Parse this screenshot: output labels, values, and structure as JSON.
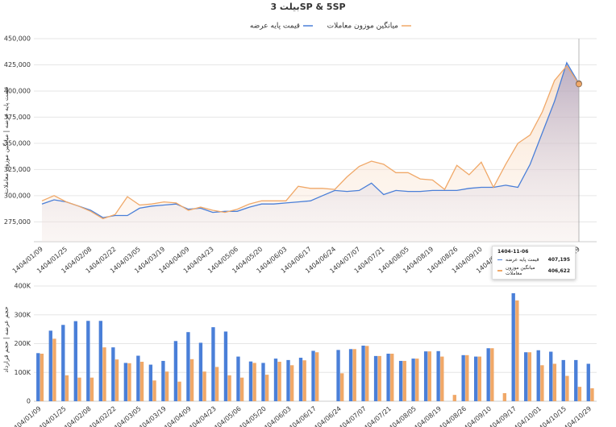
{
  "chart_data": [
    {
      "type": "line",
      "title": "بیلت 3SP & 5SP",
      "y_label": "قیمت پایه عرضه | میانگین موزون معاملات",
      "categories": [
        "1404/01/09",
        null,
        "1404/01/25",
        null,
        "1404/02/08",
        null,
        "1404/02/22",
        null,
        "1404/03/05",
        null,
        "1404/03/19",
        null,
        "1404/04/09",
        null,
        "1404/04/23",
        null,
        "1404/05/06",
        null,
        "1404/05/20",
        null,
        "1404/06/03",
        null,
        "1404/06/17",
        null,
        "1404/06/24",
        null,
        "1404/07/07",
        null,
        "1404/07/21",
        null,
        "1404/08/05",
        null,
        "1404/08/19",
        null,
        "1404/08/26",
        null,
        "1404/09/10",
        null,
        "1404/09/17",
        null,
        "1404/10/01",
        null,
        "1404/10/15",
        null,
        "1404/10/29"
      ],
      "series": [
        {
          "name": "قیمت پایه عرضه",
          "color": "#4a7fd8",
          "values": [
            292000,
            296000,
            294000,
            290000,
            286000,
            279000,
            281000,
            281000,
            288000,
            290000,
            291000,
            292000,
            287000,
            288000,
            284000,
            285000,
            285000,
            289000,
            292000,
            292000,
            293000,
            294000,
            295000,
            300000,
            305000,
            304000,
            305000,
            312000,
            301000,
            305000,
            304000,
            304000,
            305000,
            305000,
            305000,
            307000,
            308000,
            308000,
            310000,
            308000,
            330000,
            360000,
            390000,
            427000,
            407195
          ]
        },
        {
          "name": "میانگین موزون معاملات",
          "color": "#f0a868",
          "values": [
            295000,
            300000,
            294000,
            290000,
            285000,
            278000,
            282000,
            299000,
            291000,
            292000,
            294000,
            293000,
            286000,
            289000,
            286000,
            284000,
            287000,
            292000,
            295000,
            295000,
            295000,
            309000,
            307000,
            307000,
            306000,
            318000,
            328000,
            333000,
            330000,
            322000,
            322000,
            316000,
            315000,
            306000,
            329000,
            320000,
            332000,
            308000,
            330000,
            350000,
            358000,
            380000,
            410000,
            424000,
            406622
          ]
        }
      ],
      "ylim": [
        256000,
        450000
      ],
      "yticks": [
        {
          "value": 275000,
          "label": "275,000"
        },
        {
          "value": 300000,
          "label": "300,000"
        },
        {
          "value": 325000,
          "label": "325,000"
        },
        {
          "value": 350000,
          "label": "350,000"
        },
        {
          "value": 375000,
          "label": "375,000"
        },
        {
          "value": 400000,
          "label": "400,000"
        },
        {
          "value": 425000,
          "label": "425,000"
        },
        {
          "value": 450000,
          "label": "450,000"
        }
      ],
      "grid": true,
      "tooltip": {
        "title": "1404-11-06",
        "value_labels": [
          "407,195",
          "406,622"
        ]
      }
    },
    {
      "type": "bar",
      "y_label": "حجم عرضه | حجم قرارداد",
      "categories": [
        "1404/01/09",
        null,
        "1404/01/25",
        null,
        "1404/02/08",
        null,
        "1404/02/22",
        null,
        "1404/03/05",
        null,
        "1404/03/19",
        null,
        "1404/04/09",
        null,
        "1404/04/23",
        null,
        "1404/05/06",
        null,
        "1404/05/20",
        null,
        "1404/06/03",
        null,
        "1404/06/17",
        null,
        "1404/06/24",
        null,
        "1404/07/07",
        null,
        "1404/07/21",
        null,
        "1404/08/05",
        null,
        "1404/08/19",
        null,
        "1404/08/26",
        null,
        "1404/09/10",
        null,
        "1404/09/17",
        null,
        "1404/10/01",
        null,
        "1404/10/15",
        null,
        "1404/10/29"
      ],
      "series": [
        {
          "color": "#4a7fd8",
          "values": [
            167000,
            245000,
            265000,
            278000,
            279000,
            279000,
            187000,
            133000,
            158000,
            127000,
            140000,
            209000,
            240000,
            203000,
            257000,
            242000,
            155000,
            138000,
            133000,
            148000,
            143000,
            151000,
            175000,
            0,
            178000,
            181000,
            193000,
            157000,
            165000,
            140000,
            148000,
            173000,
            174000,
            0,
            160000,
            155000,
            184000,
            0,
            375000,
            170000,
            177000,
            172000,
            143000,
            143000,
            130000
          ]
        },
        {
          "color": "#f0a868",
          "values": [
            165000,
            217000,
            90000,
            82000,
            82000,
            187000,
            145000,
            132000,
            137000,
            72000,
            103000,
            68000,
            146000,
            103000,
            119000,
            90000,
            82000,
            133000,
            92000,
            137000,
            125000,
            142000,
            170000,
            0,
            97000,
            181000,
            192000,
            157000,
            165000,
            140000,
            148000,
            173000,
            155000,
            22000,
            160000,
            155000,
            184000,
            28000,
            350000,
            170000,
            125000,
            130000,
            88000,
            50000,
            45000
          ]
        }
      ],
      "ylim": [
        0,
        428000
      ],
      "yticks": [
        0,
        {
          "value": 100000,
          "label": "100K"
        },
        {
          "value": 200000,
          "label": "200K"
        },
        {
          "value": 300000,
          "label": "300K"
        },
        {
          "value": 400000,
          "label": "400K"
        }
      ],
      "grid": true
    }
  ]
}
